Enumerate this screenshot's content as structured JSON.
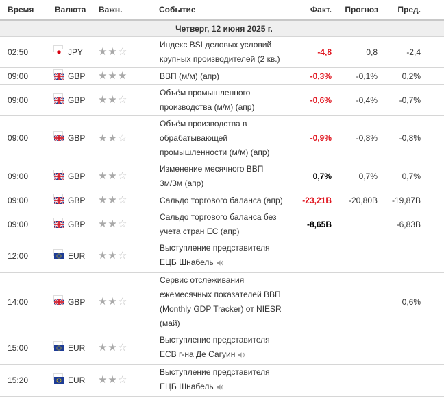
{
  "header": {
    "time": "Время",
    "currency": "Валюта",
    "importance": "Важн.",
    "event": "Событие",
    "actual": "Факт.",
    "forecast": "Прогноз",
    "previous": "Пред."
  },
  "day_label": "Четверг, 12 июня 2025 г.",
  "colors": {
    "negative": "#e0141e",
    "neutral": "#000000",
    "star": "#a9a9a9"
  },
  "events": [
    {
      "time": "02:50",
      "flag": "jp-flag-icon",
      "currency": "JPY",
      "stars": 2,
      "event": "Индекс BSI деловых условий крупных производителей (2 кв.)",
      "actual": "-4,8",
      "actual_color": "red",
      "forecast": "0,8",
      "previous": "-2,4",
      "speech": false
    },
    {
      "time": "09:00",
      "flag": "uk-flag-icon",
      "currency": "GBP",
      "stars": 3,
      "event": "ВВП (м/м) (апр)",
      "actual": "-0,3%",
      "actual_color": "red",
      "forecast": "-0,1%",
      "previous": "0,2%",
      "speech": false
    },
    {
      "time": "09:00",
      "flag": "uk-flag-icon",
      "currency": "GBP",
      "stars": 2,
      "event": "Объём промышленного производства (м/м) (апр)",
      "actual": "-0,6%",
      "actual_color": "red",
      "forecast": "-0,4%",
      "previous": "-0,7%",
      "speech": false
    },
    {
      "time": "09:00",
      "flag": "uk-flag-icon",
      "currency": "GBP",
      "stars": 2,
      "event": "Объём производства в обрабатывающей промышленности (м/м) (апр)",
      "actual": "-0,9%",
      "actual_color": "red",
      "forecast": "-0,8%",
      "previous": "-0,8%",
      "speech": false
    },
    {
      "time": "09:00",
      "flag": "uk-flag-icon",
      "currency": "GBP",
      "stars": 2,
      "event": "Изменение месячного ВВП 3м/3м (апр)",
      "actual": "0,7%",
      "actual_color": "black",
      "forecast": "0,7%",
      "previous": "0,7%",
      "speech": false
    },
    {
      "time": "09:00",
      "flag": "uk-flag-icon",
      "currency": "GBP",
      "stars": 2,
      "event": "Сальдо торгового баланса (апр)",
      "actual": "-23,21B",
      "actual_color": "red",
      "forecast": "-20,80B",
      "previous": "-19,87B",
      "speech": false
    },
    {
      "time": "09:00",
      "flag": "uk-flag-icon",
      "currency": "GBP",
      "stars": 2,
      "event": "Сальдо торгового баланса без учета стран ЕС (апр)",
      "actual": "-8,65B",
      "actual_color": "black",
      "forecast": "",
      "previous": "-6,83B",
      "speech": false
    },
    {
      "time": "12:00",
      "flag": "eu-flag-icon",
      "currency": "EUR",
      "stars": 2,
      "event": "Выступление представителя ЕЦБ Шнабель",
      "actual": "",
      "actual_color": "black",
      "forecast": "",
      "previous": "",
      "speech": true
    },
    {
      "time": "14:00",
      "flag": "uk-flag-icon",
      "currency": "GBP",
      "stars": 2,
      "event": "Сервис отслеживания ежемесячных показателей ВВП (Monthly GDP Tracker) от NIESR (май)",
      "actual": "",
      "actual_color": "black",
      "forecast": "",
      "previous": "0,6%",
      "speech": false
    },
    {
      "time": "15:00",
      "flag": "eu-flag-icon",
      "currency": "EUR",
      "stars": 2,
      "event": "Выступление представителя ECB г-на Де Сагуин",
      "actual": "",
      "actual_color": "black",
      "forecast": "",
      "previous": "",
      "speech": true
    },
    {
      "time": "15:20",
      "flag": "eu-flag-icon",
      "currency": "EUR",
      "stars": 2,
      "event": "Выступление представителя ЕЦБ Шнабель",
      "actual": "",
      "actual_color": "black",
      "forecast": "",
      "previous": "",
      "speech": true
    }
  ]
}
